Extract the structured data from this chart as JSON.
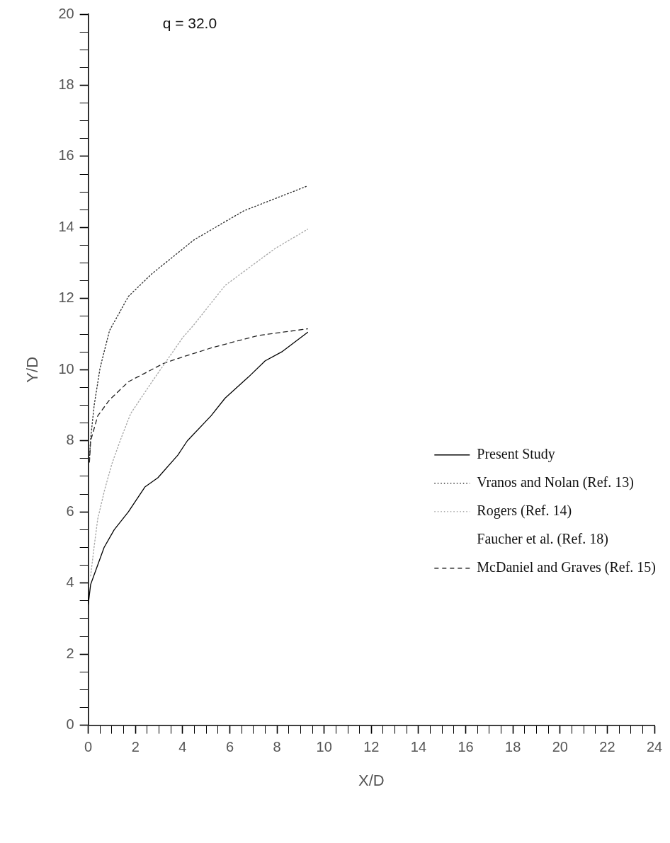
{
  "chart_data": {
    "type": "line",
    "xlabel": "X/D",
    "ylabel": "Y/D",
    "annotations": [
      "q = 32.0"
    ],
    "xlim": [
      0,
      24
    ],
    "ylim": [
      0,
      20
    ],
    "xticks": [
      0,
      {
        "value": 0.5,
        "label": null
      },
      {
        "value": 1,
        "label": null
      },
      {
        "value": 1.5,
        "label": null
      },
      2,
      {
        "value": 2.5,
        "label": null
      },
      {
        "value": 3,
        "label": null
      },
      {
        "value": 3.5,
        "label": null
      },
      4,
      {
        "value": 4.5,
        "label": null
      },
      {
        "value": 5,
        "label": null
      },
      {
        "value": 5.5,
        "label": null
      },
      6,
      {
        "value": 6.5,
        "label": null
      },
      {
        "value": 7,
        "label": null
      },
      {
        "value": 7.5,
        "label": null
      },
      8,
      {
        "value": 8.5,
        "label": null
      },
      {
        "value": 9,
        "label": null
      },
      {
        "value": 9.5,
        "label": null
      },
      10,
      {
        "value": 10.5,
        "label": null
      },
      {
        "value": 11,
        "label": null
      },
      {
        "value": 11.5,
        "label": null
      },
      12,
      {
        "value": 12.5,
        "label": null
      },
      {
        "value": 13,
        "label": null
      },
      {
        "value": 13.5,
        "label": null
      },
      14,
      {
        "value": 14.5,
        "label": null
      },
      {
        "value": 15,
        "label": null
      },
      {
        "value": 15.5,
        "label": null
      },
      16,
      {
        "value": 16.5,
        "label": null
      },
      {
        "value": 17,
        "label": null
      },
      {
        "value": 17.5,
        "label": null
      },
      18,
      {
        "value": 18.5,
        "label": null
      },
      {
        "value": 19,
        "label": null
      },
      {
        "value": 19.5,
        "label": null
      },
      20,
      {
        "value": 20.5,
        "label": null
      },
      {
        "value": 21,
        "label": null
      },
      {
        "value": 21.5,
        "label": null
      },
      22,
      {
        "value": 22.5,
        "label": null
      },
      {
        "value": 23,
        "label": null
      },
      {
        "value": 23.5,
        "label": null
      },
      24
    ],
    "yticks": [
      0,
      {
        "value": 0.5,
        "label": null
      },
      {
        "value": 1,
        "label": null
      },
      {
        "value": 1.5,
        "label": null
      },
      2,
      {
        "value": 2.5,
        "label": null
      },
      {
        "value": 3,
        "label": null
      },
      {
        "value": 3.5,
        "label": null
      },
      4,
      {
        "value": 4.5,
        "label": null
      },
      {
        "value": 5,
        "label": null
      },
      {
        "value": 5.5,
        "label": null
      },
      6,
      {
        "value": 6.5,
        "label": null
      },
      {
        "value": 7,
        "label": null
      },
      {
        "value": 7.5,
        "label": null
      },
      8,
      {
        "value": 8.5,
        "label": null
      },
      {
        "value": 9,
        "label": null
      },
      {
        "value": 9.5,
        "label": null
      },
      10,
      {
        "value": 10.5,
        "label": null
      },
      {
        "value": 11,
        "label": null
      },
      {
        "value": 11.5,
        "label": null
      },
      12,
      {
        "value": 12.5,
        "label": null
      },
      {
        "value": 13,
        "label": null
      },
      {
        "value": 13.5,
        "label": null
      },
      14,
      {
        "value": 14.5,
        "label": null
      },
      {
        "value": 15,
        "label": null
      },
      {
        "value": 15.5,
        "label": null
      },
      16,
      {
        "value": 16.5,
        "label": null
      },
      {
        "value": 17,
        "label": null
      },
      {
        "value": 17.5,
        "label": null
      },
      18,
      {
        "value": 18.5,
        "label": null
      },
      {
        "value": 19,
        "label": null
      },
      {
        "value": 19.5,
        "label": null
      },
      20
    ],
    "legend": "right",
    "marker": "none",
    "series": [
      {
        "name": "Present Study",
        "color": "#000000",
        "line_style": "solid",
        "x": [
          0,
          0.1,
          0.67,
          1.1,
          1.7,
          2.4,
          2.95,
          3.8,
          4.2,
          5.2,
          5.8,
          6.8,
          7.5,
          8.2,
          9.3
        ],
        "values": [
          3.4,
          3.96,
          5.0,
          5.5,
          6.0,
          6.7,
          6.96,
          7.6,
          8.0,
          8.7,
          9.2,
          9.8,
          10.25,
          10.5,
          11.05
        ]
      },
      {
        "name": "Vranos and Nolan (Ref. 13)",
        "color": "#333333",
        "line_style": "dotted",
        "x": [
          0.05,
          0.1,
          0.25,
          0.5,
          0.9,
          1.7,
          2.7,
          4.5,
          6.6,
          9.3
        ],
        "values": [
          7.5,
          8.06,
          9.0,
          10.05,
          11.1,
          12.06,
          12.7,
          13.66,
          14.47,
          15.17
        ]
      },
      {
        "name": "Rogers (Ref. 14)",
        "color": "#aaaaaa",
        "line_style": "dotted",
        "x": [
          0.1,
          0.25,
          0.4,
          0.7,
          1.0,
          1.35,
          1.8,
          2.7,
          4.0,
          4.5,
          5.8,
          7.9,
          9.3
        ],
        "values": [
          4.2,
          5.03,
          5.8,
          6.64,
          7.35,
          8.0,
          8.77,
          9.66,
          10.9,
          11.28,
          12.37,
          13.4,
          13.95
        ]
      },
      {
        "name": "Faucher et al. (Ref. 18)"
      },
      {
        "name": "McDaniel and Graves (Ref. 15)",
        "color": "#222222",
        "line_style": "dashed",
        "x": [
          0.05,
          0.1,
          0.4,
          0.9,
          1.7,
          3.2,
          4.1,
          5.3,
          7.2,
          9.3
        ],
        "values": [
          7.4,
          8.0,
          8.7,
          9.15,
          9.66,
          10.18,
          10.38,
          10.63,
          10.96,
          11.15
        ]
      }
    ]
  }
}
